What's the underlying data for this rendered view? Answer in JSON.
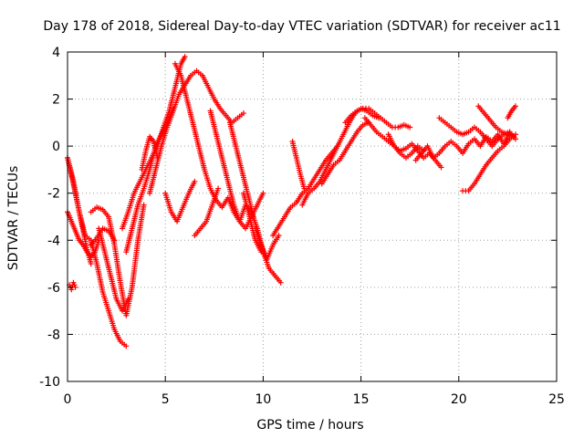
{
  "chart_data": {
    "type": "scatter",
    "title": "Day 178 of 2018, Sidereal Day-to-day VTEC variation (SDTVAR) for receiver ac11",
    "xlabel": "GPS time / hours",
    "ylabel": "SDTVAR / TECUs",
    "xlim": [
      0,
      25
    ],
    "ylim": [
      -10,
      4
    ],
    "xticks": [
      0,
      5,
      10,
      15,
      20,
      25
    ],
    "yticks": [
      -10,
      -8,
      -6,
      -4,
      -2,
      0,
      2,
      4
    ],
    "xtick_labels": [
      "0",
      "5",
      "10",
      "15",
      "20",
      "25"
    ],
    "ytick_labels": [
      "-10",
      "-8",
      "-6",
      "-4",
      "-2",
      "0",
      "2",
      "4"
    ],
    "grid": true,
    "marker": "+",
    "color": "#ff0000",
    "series": [
      {
        "name": "track-1",
        "x": [
          0.0,
          0.2,
          0.4,
          0.6,
          0.8,
          1.0,
          1.2
        ],
        "y": [
          -0.5,
          -1.2,
          -2.0,
          -2.8,
          -3.6,
          -4.4,
          -5.0
        ]
      },
      {
        "name": "track-2",
        "x": [
          0.1,
          0.2,
          0.3,
          0.4
        ],
        "y": [
          -5.9,
          -6.1,
          -5.8,
          -6.0
        ]
      },
      {
        "name": "track-3",
        "x": [
          0.0,
          0.2,
          0.4,
          0.6,
          0.8,
          1.0,
          1.2,
          1.4,
          1.6
        ],
        "y": [
          -2.8,
          -3.2,
          -3.6,
          -4.0,
          -4.2,
          -4.5,
          -4.7,
          -4.5,
          -4.0
        ]
      },
      {
        "name": "track-4",
        "x": [
          0.0,
          0.3,
          0.6,
          0.9,
          1.2,
          1.5,
          1.8,
          2.1,
          2.4,
          2.7,
          3.0
        ],
        "y": [
          -0.5,
          -1.5,
          -2.8,
          -3.8,
          -4.0,
          -5.0,
          -6.2,
          -7.0,
          -7.8,
          -8.3,
          -8.5
        ]
      },
      {
        "name": "track-5",
        "x": [
          1.2,
          1.5,
          1.8,
          2.1,
          2.4,
          2.7,
          3.0,
          3.3,
          3.6,
          3.9
        ],
        "y": [
          -2.8,
          -2.6,
          -2.7,
          -3.0,
          -4.2,
          -5.8,
          -7.2,
          -6.0,
          -4.0,
          -2.5
        ]
      },
      {
        "name": "track-6",
        "x": [
          1.6,
          1.9,
          2.2,
          2.5,
          2.8,
          3.1
        ],
        "y": [
          -3.5,
          -4.5,
          -5.5,
          -6.5,
          -7.0,
          -6.5
        ]
      },
      {
        "name": "track-7",
        "x": [
          2.8,
          3.1,
          3.4,
          3.7,
          4.0,
          4.3,
          4.6,
          4.9,
          5.2,
          5.5,
          5.8,
          6.0
        ],
        "y": [
          -3.5,
          -2.8,
          -2.0,
          -1.5,
          -1.0,
          -0.5,
          0.0,
          0.8,
          1.5,
          2.5,
          3.5,
          3.8
        ]
      },
      {
        "name": "track-8",
        "x": [
          3.0,
          3.3,
          3.6,
          3.9,
          4.2,
          4.5,
          4.8,
          5.1,
          5.4
        ],
        "y": [
          -4.5,
          -3.5,
          -2.5,
          -1.8,
          -1.0,
          0.0,
          0.5,
          1.0,
          1.6
        ]
      },
      {
        "name": "track-9",
        "x": [
          3.8,
          4.0,
          4.2,
          4.4,
          4.6
        ],
        "y": [
          -1.0,
          -0.2,
          0.4,
          0.2,
          -0.5
        ]
      },
      {
        "name": "track-10",
        "x": [
          4.2,
          4.5,
          4.8,
          5.1,
          5.4,
          5.7,
          6.0,
          6.3,
          6.6,
          6.9,
          7.2,
          7.5,
          7.8,
          8.1,
          8.4,
          8.7,
          9.0
        ],
        "y": [
          -2.0,
          -1.0,
          0.0,
          0.8,
          1.5,
          2.2,
          2.6,
          3.0,
          3.2,
          3.0,
          2.5,
          2.0,
          1.6,
          1.3,
          1.0,
          1.2,
          1.4
        ]
      },
      {
        "name": "track-11",
        "x": [
          5.0,
          5.3,
          5.6,
          5.9,
          6.2,
          6.5
        ],
        "y": [
          -2.0,
          -2.8,
          -3.2,
          -2.6,
          -2.0,
          -1.5
        ]
      },
      {
        "name": "track-12",
        "x": [
          5.5,
          5.8,
          6.1,
          6.4,
          6.7,
          7.0,
          7.3,
          7.6,
          7.9,
          8.2,
          8.5,
          8.8,
          9.1,
          9.4,
          9.7,
          10.0,
          10.3,
          10.6,
          10.9
        ],
        "y": [
          3.5,
          3.0,
          2.0,
          1.0,
          0.0,
          -1.0,
          -1.8,
          -2.3,
          -2.6,
          -2.2,
          -2.8,
          -3.2,
          -2.5,
          -2.8,
          -3.5,
          -4.5,
          -5.2,
          -5.5,
          -5.8
        ]
      },
      {
        "name": "track-13",
        "x": [
          6.5,
          6.8,
          7.1,
          7.4,
          7.7
        ],
        "y": [
          -3.8,
          -3.5,
          -3.2,
          -2.5,
          -1.8
        ]
      },
      {
        "name": "track-14",
        "x": [
          7.3,
          7.6,
          7.9,
          8.2,
          8.5,
          8.8,
          9.1,
          9.4,
          9.7,
          10.0
        ],
        "y": [
          1.5,
          0.5,
          -0.5,
          -1.5,
          -2.5,
          -3.2,
          -3.5,
          -3.0,
          -2.5,
          -2.0
        ]
      },
      {
        "name": "track-15",
        "x": [
          8.3,
          8.6,
          8.9,
          9.2,
          9.5
        ],
        "y": [
          1.0,
          0.0,
          -1.0,
          -2.0,
          -3.0
        ]
      },
      {
        "name": "track-16",
        "x": [
          9.0,
          9.3,
          9.6,
          9.9
        ],
        "y": [
          -2.0,
          -3.0,
          -4.0,
          -4.5
        ]
      },
      {
        "name": "track-17",
        "x": [
          9.6,
          9.9,
          10.2,
          10.5,
          10.8
        ],
        "y": [
          -3.5,
          -4.2,
          -4.8,
          -4.2,
          -3.8
        ]
      },
      {
        "name": "track-18",
        "x": [
          10.5,
          10.8,
          11.1,
          11.4,
          11.7,
          12.0,
          12.3,
          12.6,
          12.9,
          13.2,
          13.5,
          13.8
        ],
        "y": [
          -3.8,
          -3.4,
          -3.0,
          -2.6,
          -2.4,
          -2.0,
          -1.8,
          -1.4,
          -1.0,
          -0.6,
          -0.3,
          0.0
        ]
      },
      {
        "name": "track-19",
        "x": [
          11.5,
          11.7,
          11.9,
          12.1
        ],
        "y": [
          0.2,
          -0.5,
          -1.2,
          -1.8
        ]
      },
      {
        "name": "track-20",
        "x": [
          12.0,
          12.3,
          12.6,
          12.9,
          13.2,
          13.5,
          13.8,
          14.1,
          14.4,
          14.7,
          15.0,
          15.3,
          15.6,
          15.9
        ],
        "y": [
          -2.5,
          -2.0,
          -1.8,
          -1.5,
          -1.0,
          -0.5,
          0.0,
          0.5,
          1.0,
          1.4,
          1.6,
          1.5,
          1.3,
          1.2
        ]
      },
      {
        "name": "track-21",
        "x": [
          13.0,
          13.3,
          13.6,
          13.9,
          14.2,
          14.5,
          14.8,
          15.1,
          15.4
        ],
        "y": [
          -1.6,
          -1.2,
          -0.8,
          -0.6,
          -0.2,
          0.2,
          0.6,
          0.9,
          1.0
        ]
      },
      {
        "name": "track-22",
        "x": [
          14.2,
          14.5,
          14.8,
          15.1,
          15.4,
          15.7,
          16.0,
          16.3,
          16.6,
          16.9,
          17.2,
          17.5
        ],
        "y": [
          1.0,
          1.3,
          1.5,
          1.6,
          1.6,
          1.4,
          1.2,
          1.0,
          0.8,
          0.8,
          0.9,
          0.8
        ]
      },
      {
        "name": "track-23",
        "x": [
          15.2,
          15.5,
          15.8,
          16.1,
          16.4,
          16.7,
          17.0,
          17.3,
          17.6,
          17.9,
          18.2,
          18.5,
          18.8,
          19.1
        ],
        "y": [
          1.2,
          0.9,
          0.6,
          0.4,
          0.2,
          0.0,
          -0.2,
          -0.1,
          0.1,
          -0.2,
          -0.5,
          -0.3,
          -0.6,
          -0.9
        ]
      },
      {
        "name": "track-24",
        "x": [
          16.4,
          16.7,
          17.0,
          17.3,
          17.6,
          17.9,
          18.2
        ],
        "y": [
          0.5,
          0.0,
          -0.3,
          -0.5,
          -0.3,
          0.0,
          -0.2
        ]
      },
      {
        "name": "track-25",
        "x": [
          17.8,
          18.1,
          18.4,
          18.7,
          19.0,
          19.3,
          19.6,
          19.9,
          20.2,
          20.5,
          20.8,
          21.1,
          21.4,
          21.7,
          22.0,
          22.3,
          22.6,
          22.9
        ],
        "y": [
          -0.6,
          -0.3,
          0.0,
          -0.5,
          -0.3,
          0.0,
          0.2,
          0.0,
          -0.3,
          0.1,
          0.3,
          0.0,
          0.4,
          0.2,
          0.5,
          0.1,
          0.6,
          0.3
        ]
      },
      {
        "name": "track-26",
        "x": [
          19.0,
          19.3,
          19.6,
          19.9,
          20.2,
          20.5,
          20.8,
          21.1,
          21.4,
          21.7,
          22.0,
          22.3,
          22.6
        ],
        "y": [
          1.2,
          1.0,
          0.8,
          0.6,
          0.5,
          0.6,
          0.8,
          0.6,
          0.3,
          0.0,
          0.3,
          0.5,
          0.6
        ]
      },
      {
        "name": "track-27",
        "x": [
          20.2,
          20.5,
          20.8,
          21.1,
          21.4,
          21.7,
          22.0,
          22.3,
          22.6,
          22.9
        ],
        "y": [
          -1.9,
          -1.9,
          -1.6,
          -1.2,
          -0.8,
          -0.5,
          -0.2,
          0.0,
          0.3,
          0.5
        ]
      },
      {
        "name": "track-28",
        "x": [
          21.0,
          21.3,
          21.6,
          21.9,
          22.2,
          22.5,
          22.8
        ],
        "y": [
          1.7,
          1.4,
          1.1,
          0.8,
          0.6,
          0.5,
          0.4
        ]
      },
      {
        "name": "track-29",
        "x": [
          22.5,
          22.7,
          22.9
        ],
        "y": [
          1.2,
          1.5,
          1.7
        ]
      },
      {
        "name": "track-30",
        "x": [
          1.2,
          1.5,
          1.8,
          2.1,
          2.4
        ],
        "y": [
          -4.2,
          -3.9,
          -3.5,
          -3.6,
          -4.0
        ]
      }
    ]
  }
}
